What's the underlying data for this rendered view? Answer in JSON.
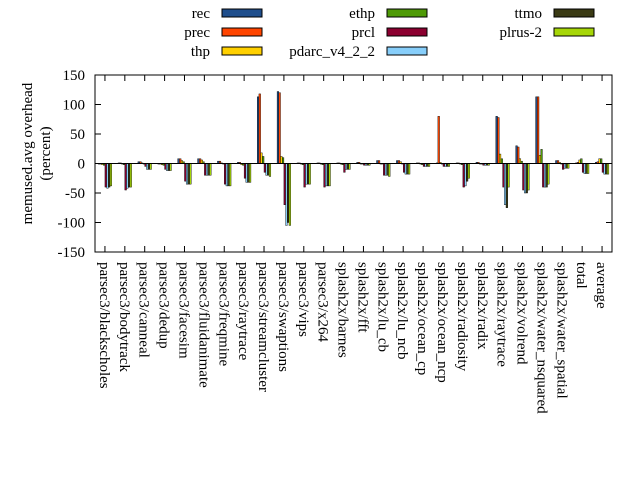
{
  "chart_data": {
    "type": "bar",
    "ylabel": "memused.avg overhead\n(percent)",
    "ylim": [
      -150,
      150
    ],
    "yticks": [
      150,
      100,
      50,
      0,
      -50,
      -100,
      -150
    ],
    "grid": false,
    "legend_position": "top",
    "categories": [
      "parsec3/blackscholes",
      "parsec3/bodytrack",
      "parsec3/canneal",
      "parsec3/dedup",
      "parsec3/facesim",
      "parsec3/fluidanimate",
      "parsec3/freqmine",
      "parsec3/raytrace",
      "parsec3/streamcluster",
      "parsec3/swaptions",
      "parsec3/vips",
      "parsec3/x264",
      "splash2x/barnes",
      "splash2x/fft",
      "splash2x/lu_cb",
      "splash2x/lu_ncb",
      "splash2x/ocean_cp",
      "splash2x/ocean_ncp",
      "splash2x/radiosity",
      "splash2x/radix",
      "splash2x/raytrace",
      "splash2x/volrend",
      "splash2x/water_nsquared",
      "splash2x/water_spatial",
      "total",
      "average"
    ],
    "series": [
      {
        "name": "rec",
        "color": "#1f4e8c",
        "values": [
          -1,
          1,
          3,
          -1,
          8,
          8,
          4,
          2,
          113,
          122,
          1,
          1,
          1,
          2,
          5,
          5,
          1,
          1,
          1,
          2,
          80,
          30,
          113,
          5,
          1,
          2
        ]
      },
      {
        "name": "prec",
        "color": "#ff4500",
        "values": [
          -1,
          1,
          3,
          -1,
          8,
          8,
          4,
          2,
          118,
          120,
          1,
          1,
          1,
          2,
          5,
          5,
          1,
          80,
          1,
          2,
          78,
          28,
          113,
          5,
          2,
          3
        ]
      },
      {
        "name": "thp",
        "color": "#ffd000",
        "values": [
          -2,
          -1,
          1,
          -2,
          5,
          6,
          1,
          -2,
          18,
          12,
          -1,
          -1,
          -1,
          0,
          0,
          3,
          -1,
          2,
          -1,
          0,
          16,
          8,
          14,
          2,
          6,
          8
        ]
      },
      {
        "name": "ethp",
        "color": "#4e9a06",
        "values": [
          -3,
          -2,
          0,
          -3,
          3,
          3,
          0,
          -3,
          12,
          10,
          -2,
          -2,
          -2,
          -1,
          -1,
          0,
          -2,
          0,
          -2,
          -1,
          8,
          4,
          24,
          0,
          8,
          8
        ]
      },
      {
        "name": "prcl",
        "color": "#8b0030",
        "values": [
          -40,
          -45,
          -5,
          -10,
          -30,
          -20,
          -35,
          -25,
          -15,
          -70,
          -40,
          -40,
          -15,
          -3,
          -20,
          -15,
          -5,
          -5,
          -40,
          -3,
          -40,
          -45,
          -40,
          -10,
          -15,
          -15
        ]
      },
      {
        "name": "pdarc_v4_2_2",
        "color": "#87cefa",
        "values": [
          -42,
          -42,
          -10,
          -12,
          -35,
          -20,
          -38,
          -32,
          -20,
          -105,
          -35,
          -38,
          -10,
          -3,
          -20,
          -18,
          -5,
          -5,
          -38,
          -3,
          -70,
          -50,
          -40,
          -8,
          -17,
          -18
        ]
      },
      {
        "name": "ttmo",
        "color": "#3a3a14",
        "values": [
          -40,
          -40,
          -10,
          -12,
          -35,
          -20,
          -38,
          -32,
          -20,
          -100,
          -35,
          -38,
          -10,
          -3,
          -20,
          -18,
          -5,
          -5,
          -30,
          -3,
          -75,
          -50,
          -40,
          -8,
          -17,
          -18
        ]
      },
      {
        "name": "plrus-2",
        "color": "#a6d608",
        "values": [
          -38,
          -40,
          -10,
          -12,
          -35,
          -20,
          -38,
          -32,
          -22,
          -105,
          -35,
          -38,
          -10,
          -3,
          -22,
          -18,
          -5,
          -5,
          -25,
          -3,
          -40,
          -45,
          -35,
          -8,
          -17,
          -18
        ]
      }
    ]
  }
}
